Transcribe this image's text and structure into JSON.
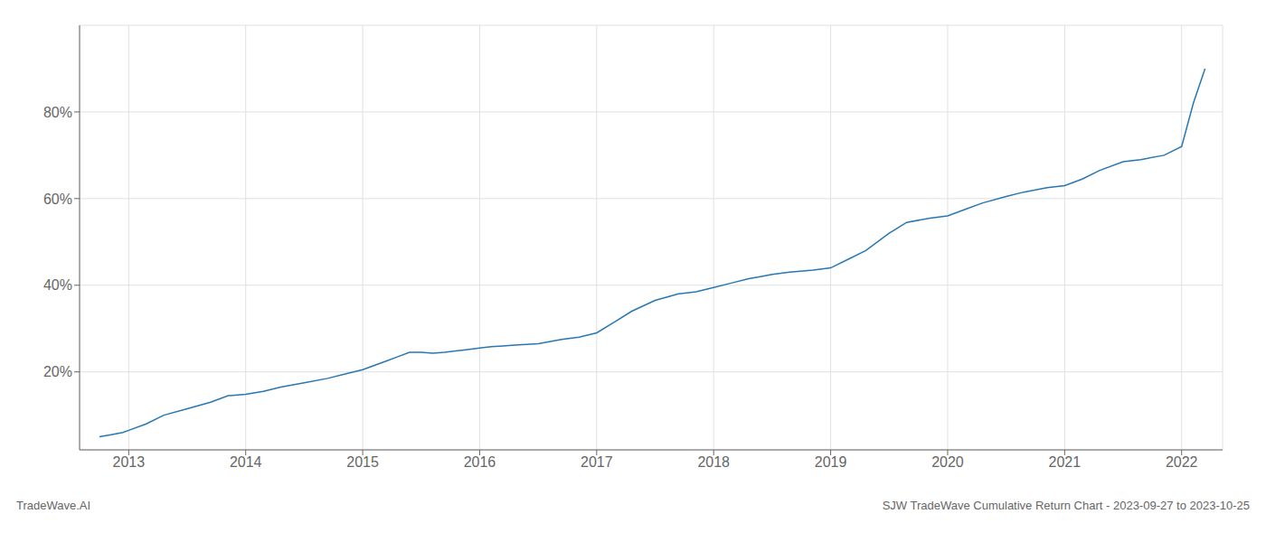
{
  "chart_data": {
    "type": "line",
    "title": "SJW TradeWave Cumulative Return Chart - 2023-09-27 to 2023-10-25",
    "annotations": [
      "TradeWave.AI"
    ],
    "color": "#2777b4",
    "grid": true,
    "x": [
      2012.75,
      2012.85,
      2012.95,
      2013.0,
      2013.15,
      2013.3,
      2013.5,
      2013.7,
      2013.85,
      2014.0,
      2014.15,
      2014.3,
      2014.5,
      2014.7,
      2014.85,
      2015.0,
      2015.1,
      2015.2,
      2015.3,
      2015.4,
      2015.5,
      2015.6,
      2015.7,
      2015.85,
      2016.0,
      2016.1,
      2016.2,
      2016.3,
      2016.5,
      2016.7,
      2016.85,
      2017.0,
      2017.15,
      2017.3,
      2017.5,
      2017.7,
      2017.85,
      2018.0,
      2018.15,
      2018.3,
      2018.4,
      2018.5,
      2018.65,
      2018.85,
      2019.0,
      2019.15,
      2019.3,
      2019.5,
      2019.65,
      2019.85,
      2020.0,
      2020.15,
      2020.3,
      2020.5,
      2020.65,
      2020.85,
      2021.0,
      2021.15,
      2021.3,
      2021.5,
      2021.65,
      2021.85,
      2022.0,
      2022.1,
      2022.2
    ],
    "values": [
      5.0,
      5.5,
      6.0,
      6.5,
      8.0,
      10.0,
      11.5,
      13.0,
      14.5,
      14.8,
      15.5,
      16.5,
      17.5,
      18.5,
      19.5,
      20.5,
      21.5,
      22.5,
      23.5,
      24.5,
      24.5,
      24.3,
      24.5,
      25.0,
      25.5,
      25.8,
      26.0,
      26.2,
      26.5,
      27.5,
      28.0,
      29.0,
      31.5,
      34.0,
      36.5,
      38.0,
      38.5,
      39.5,
      40.5,
      41.5,
      42.0,
      42.5,
      43.0,
      43.5,
      44.0,
      46.0,
      48.0,
      52.0,
      54.5,
      55.5,
      56.0,
      57.5,
      59.0,
      60.5,
      61.5,
      62.5,
      63.0,
      64.5,
      66.5,
      68.5,
      69.0,
      70.0,
      72.0,
      82.0,
      90.0
    ],
    "xlim": [
      2012.58,
      2022.35
    ],
    "xticks": [
      2013,
      2014,
      2015,
      2016,
      2017,
      2018,
      2019,
      2020,
      2021,
      2022
    ],
    "ylim": [
      2,
      100
    ],
    "yticks": [
      {
        "value": 20,
        "label": "20%"
      },
      {
        "value": 40,
        "label": "40%"
      },
      {
        "value": 60,
        "label": "60%"
      },
      {
        "value": 80,
        "label": "80%"
      }
    ]
  }
}
